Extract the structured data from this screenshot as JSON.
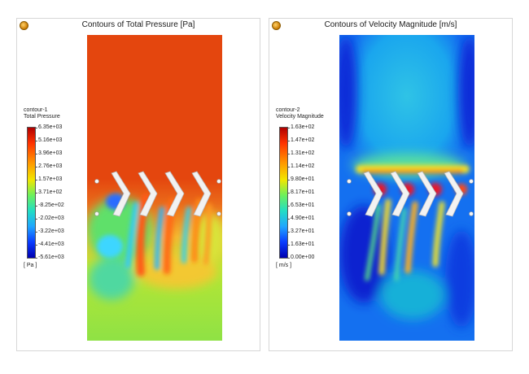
{
  "panels": [
    {
      "title": "Contours of Total Pressure  [Pa]",
      "legend_name": "contour-1",
      "quantity": "Total Pressure",
      "units": "[ Pa ]",
      "ticks": [
        "6.35e+03",
        "5.16e+03",
        "3.96e+03",
        "2.76e+03",
        "1.57e+03",
        "3.71e+02",
        "-8.25e+02",
        "-2.02e+03",
        "-3.22e+03",
        "-4.41e+03",
        "-5.61e+03"
      ]
    },
    {
      "title": "Contours of Velocity Magnitude  [m/s]",
      "legend_name": "contour-2",
      "quantity": "Velocity Magnitude",
      "units": "[ m/s ]",
      "ticks": [
        "1.63e+02",
        "1.47e+02",
        "1.31e+02",
        "1.14e+02",
        "9.80e+01",
        "8.17e+01",
        "6.53e+01",
        "4.90e+01",
        "3.27e+01",
        "1.63e+01",
        "0.00e+00"
      ]
    }
  ]
}
